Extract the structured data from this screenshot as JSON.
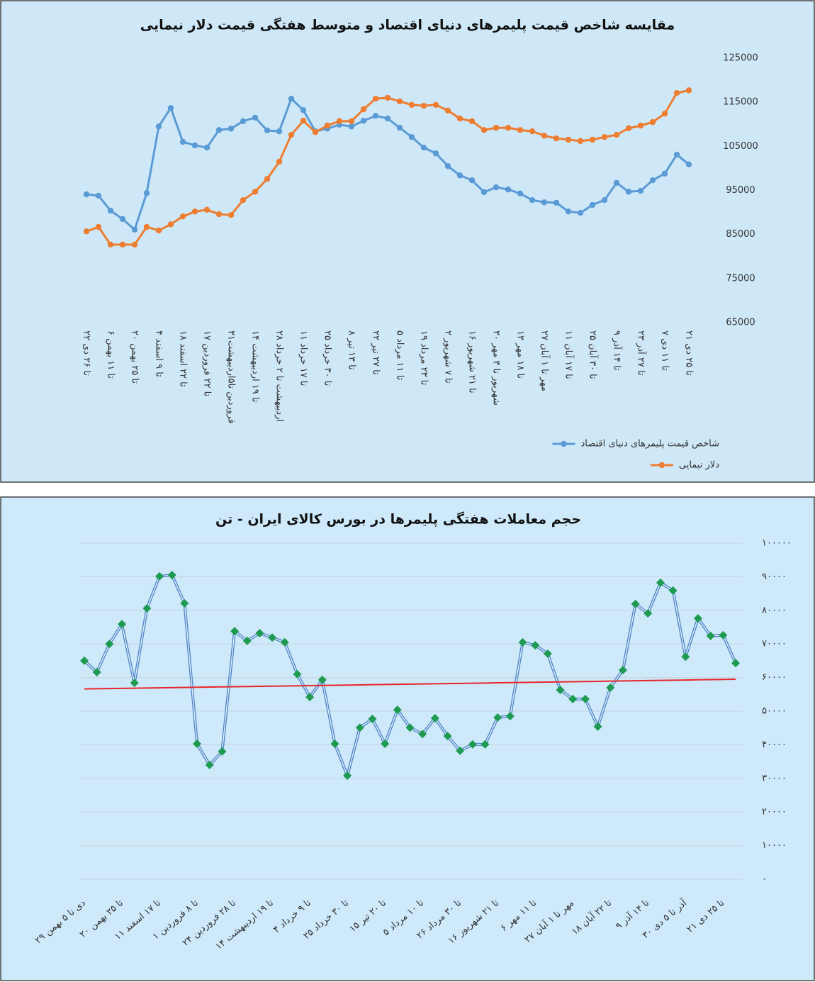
{
  "chart_data": [
    {
      "type": "line",
      "title": "مقایسه شاخص قیمت پلیمرهای دنیای اقتصاد و متوسط هفتگی قیمت دلار نیمایی",
      "categories": [
        "۲۲ تا ۲۶ دی",
        null,
        "۶ تا ۱۱ بهمن",
        null,
        "۲۰ تا ۲۵ بهمن",
        null,
        "۴ تا ۹ اسفند",
        null,
        "۱۸ تا ۲۲ اسفند",
        null,
        "۱۷ تا ۲۲ فروردین",
        null,
        "۳۱فروردین تا۵اردیبهشت",
        null,
        "۱۴ تا ۱۹ اردیبهشت",
        null,
        "۲۸ اردیبهشت تا ۲ خرداد",
        null,
        "۱۱ تا ۱۷ خرداد",
        null,
        "۲۵ تا ۳۰ خرداد",
        null,
        "۸ تا ۱۳ تیر",
        null,
        "۲۲ تا ۲۷ تیر",
        null,
        "۵ تا ۱۱ مرداد",
        null,
        "۱۹ تا ۲۳ مرداد",
        null,
        "۲ تا ۷ شهریور",
        null,
        "۱۶ تا ۲۱ شهریور",
        null,
        "۳۰ شهریور تا ۳ مهر",
        null,
        "۱۳ تا ۱۸ مهر",
        null,
        "۲۷ مهر تا ۱ آبان",
        null,
        "۱۱ تا ۱۷ آبان",
        null,
        "۲۵ تا ۳۰ آبان",
        null,
        "۹ تا ۱۴ آذر",
        null,
        "۲۳ تا ۲۷ آذر",
        null,
        "۷ تا ۱۱ دی",
        null,
        "۲۱ تا ۲۵ دی"
      ],
      "series": [
        {
          "name": "شاخص قیمت پلیمرهای دنیای اقتصاد",
          "color": "#5b9bd5",
          "values": [
            94100,
            93800,
            90400,
            88500,
            86100,
            94400,
            109500,
            113700,
            106000,
            105200,
            104700,
            108700,
            109000,
            110700,
            111500,
            108600,
            108400,
            115800,
            113200,
            108400,
            109000,
            109900,
            109500,
            110800,
            111900,
            111300,
            109200,
            107100,
            104700,
            103400,
            100500,
            98400,
            97300,
            94600,
            95700,
            95200,
            94300,
            92800,
            92300,
            92200,
            90200,
            89900,
            91700,
            92800,
            96700,
            94700,
            94900,
            97300,
            98800,
            103100,
            100900
          ]
        },
        {
          "name": "دلار نیمایی",
          "color": "#ed7d31",
          "values": [
            85700,
            86700,
            82700,
            82700,
            82700,
            86700,
            85900,
            87300,
            89100,
            90200,
            90600,
            89600,
            89400,
            92800,
            94700,
            97600,
            101500,
            107600,
            110800,
            108200,
            109700,
            110700,
            110700,
            113400,
            115800,
            116000,
            115200,
            114400,
            114200,
            114400,
            113100,
            111300,
            110700,
            108700,
            109200,
            109200,
            108700,
            108400,
            107400,
            106800,
            106500,
            106200,
            106500,
            107100,
            107600,
            109100,
            109700,
            110500,
            112400,
            117100,
            117700
          ]
        }
      ],
      "ylim": [
        65000,
        125000
      ],
      "yticks": [
        65000,
        75000,
        85000,
        95000,
        105000,
        115000,
        125000
      ],
      "grid": false,
      "legend": "bottom-right",
      "background": "#cfe8f8"
    },
    {
      "type": "line",
      "title": "حجم معاملات هفتگی پلیمرها در بورس کالای ایران - تن",
      "categories": [
        "۲۹ دی تا ۵ بهمن",
        null,
        null,
        "۲۰ تا ۲۵ بهمن",
        null,
        null,
        "۱۱ تا ۱۷ اسفند",
        null,
        null,
        "۱ تا ۸ فروردین",
        null,
        null,
        "۲۴ تا ۲۸ فروردین",
        null,
        null,
        "۱۴ تا ۱۹ اردیبهشت",
        null,
        null,
        "۴ تا ۹ خرداد",
        null,
        null,
        "۲۵ تا ۳۰ خرداد",
        null,
        null,
        "۱۵ تا ۲۰ تیر",
        null,
        null,
        "۵ تا ۱۰ مرداد",
        null,
        null,
        "۲۶ تا ۳۰ مرداد",
        null,
        null,
        "۱۶ تا ۲۱ شهریور",
        null,
        null,
        "۶ تا ۱۱ مهر",
        null,
        null,
        "۲۷ مهر تا ۱ آبان",
        null,
        null,
        "۱۸ تا ۲۲ آبان",
        null,
        null,
        "۹ تا ۱۴ آذر",
        null,
        null,
        "۳۰ آذر تا ۵ دی",
        null,
        null,
        "۲۱ تا ۲۵ دی",
        null
      ],
      "series": [
        {
          "color": "#4f86c6",
          "marker_color": "#1e9b50",
          "values": [
            65000,
            61600,
            70000,
            75900,
            58400,
            80600,
            90100,
            90500,
            82100,
            40300,
            34000,
            38000,
            73800,
            70900,
            73200,
            71900,
            70500,
            61000,
            54200,
            59300,
            40300,
            30800,
            45100,
            47700,
            40300,
            50400,
            45100,
            43200,
            47900,
            42600,
            38200,
            40100,
            40100,
            48100,
            48500,
            70500,
            69600,
            67100,
            56300,
            53600,
            53600,
            45400,
            57000,
            62200,
            81900,
            79100,
            88200,
            85900,
            66200,
            77600,
            72400,
            72600,
            64300
          ]
        }
      ],
      "ylim": [
        0,
        100000
      ],
      "yticks": [
        {
          "value": 0,
          "label": "۰"
        },
        {
          "value": 10000,
          "label": "۱۰۰۰۰"
        },
        {
          "value": 20000,
          "label": "۲۰۰۰۰"
        },
        {
          "value": 30000,
          "label": "۳۰۰۰۰"
        },
        {
          "value": 40000,
          "label": "۴۰۰۰۰"
        },
        {
          "value": 50000,
          "label": "۵۰۰۰۰"
        },
        {
          "value": 60000,
          "label": "۶۰۰۰۰"
        },
        {
          "value": 70000,
          "label": "۷۰۰۰۰"
        },
        {
          "value": 80000,
          "label": "۸۰۰۰۰"
        },
        {
          "value": 90000,
          "label": "۹۰۰۰۰"
        },
        {
          "value": 100000,
          "label": "۱۰۰۰۰۰"
        }
      ],
      "grid": true,
      "trendline": "exponential",
      "trendline_color": "#e8262a",
      "background": "#cde9fa"
    }
  ]
}
